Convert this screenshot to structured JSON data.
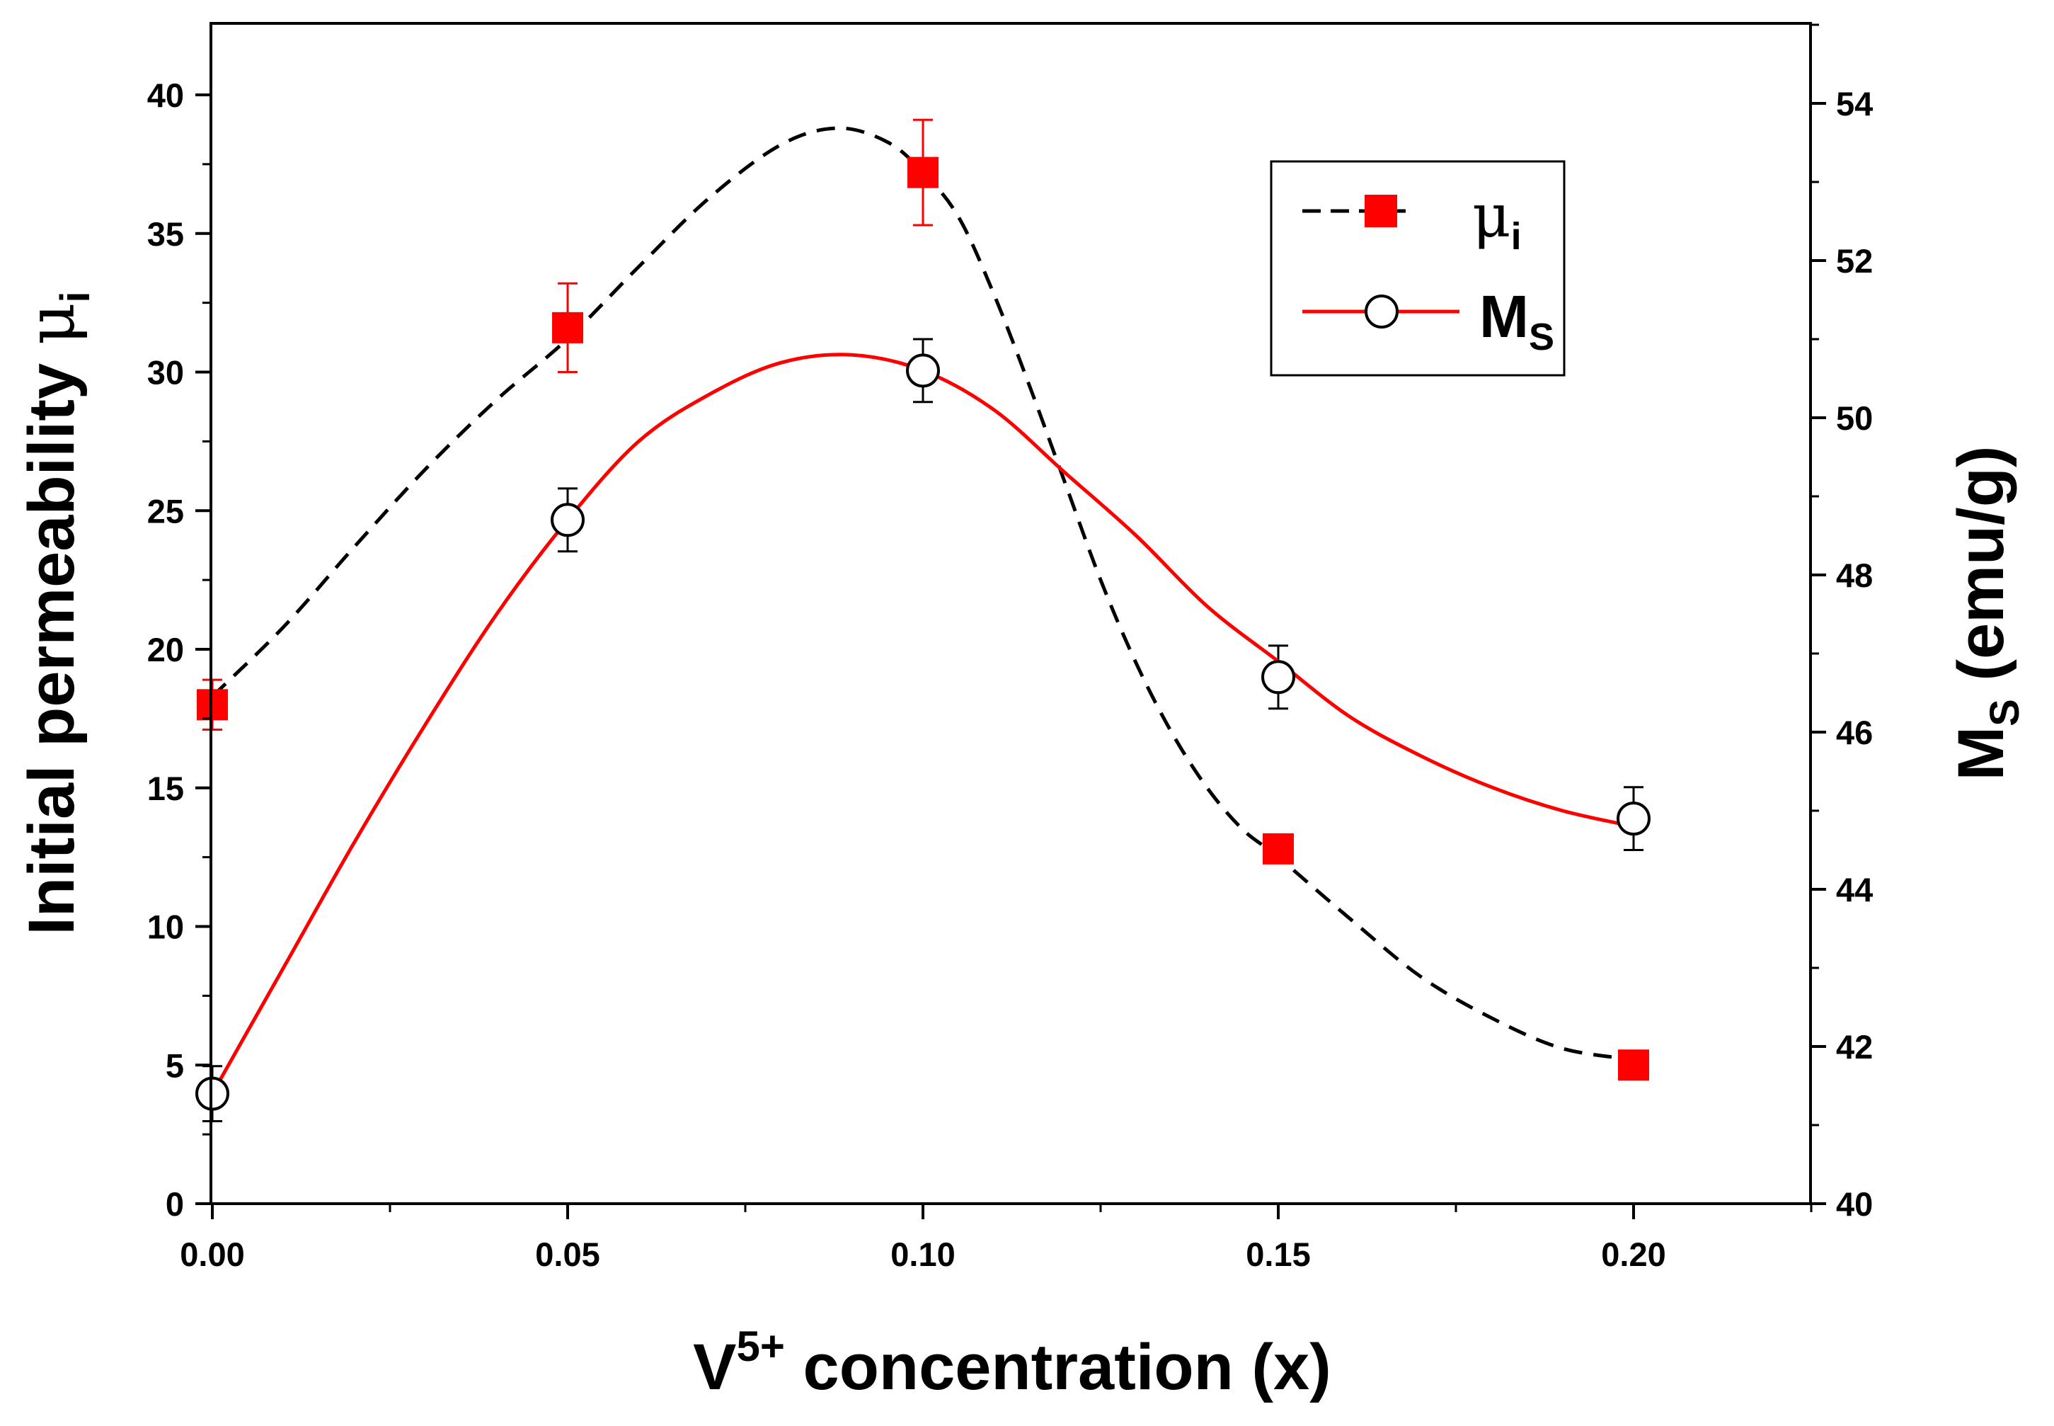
{
  "chart_data": {
    "type": "scatter",
    "title": "",
    "xlabel": {
      "main": "V",
      "sup": "5+",
      "rest": " concentration (x)"
    },
    "ylabel_left": {
      "main": "Initial permeability ",
      "greek": "μ",
      "sub": "i"
    },
    "ylabel_right": {
      "main": "M",
      "sub": "S",
      "rest": " (emu/g)"
    },
    "xlim": [
      0,
      0.225
    ],
    "ylim_left": [
      0,
      42.5
    ],
    "ylim_right": [
      40,
      55.3
    ],
    "x_ticks": [
      "0.00",
      "0.05",
      "0.10",
      "0.15",
      "0.20"
    ],
    "y_left_ticks": [
      "0",
      "5",
      "10",
      "15",
      "20",
      "25",
      "30",
      "35",
      "40"
    ],
    "y_right_ticks": [
      "40",
      "42",
      "44",
      "46",
      "48",
      "50",
      "52",
      "54"
    ],
    "grid": false,
    "legend_position": "top-right",
    "series": [
      {
        "name": "μ",
        "name_sub": "i",
        "axis": "left",
        "marker": "filled-square",
        "color": "#ff0000",
        "line_color": "#000000",
        "line_style": "dashed",
        "x": [
          0.0,
          0.05,
          0.1,
          0.15,
          0.2
        ],
        "y": [
          18.0,
          31.6,
          37.2,
          12.8,
          5.0
        ],
        "err": [
          0.9,
          1.6,
          1.9,
          0.4,
          0.3
        ],
        "fit": [
          [
            0.0,
            18.3
          ],
          [
            0.01,
            20.8
          ],
          [
            0.02,
            23.7
          ],
          [
            0.03,
            26.5
          ],
          [
            0.04,
            29.0
          ],
          [
            0.05,
            31.2
          ],
          [
            0.06,
            33.8
          ],
          [
            0.07,
            36.3
          ],
          [
            0.08,
            38.2
          ],
          [
            0.088,
            38.8
          ],
          [
            0.095,
            38.3
          ],
          [
            0.1,
            37.2
          ],
          [
            0.105,
            35.6
          ],
          [
            0.11,
            32.8
          ],
          [
            0.115,
            29.5
          ],
          [
            0.12,
            26.0
          ],
          [
            0.125,
            22.5
          ],
          [
            0.13,
            19.5
          ],
          [
            0.135,
            17.0
          ],
          [
            0.14,
            15.0
          ],
          [
            0.145,
            13.5
          ],
          [
            0.15,
            12.5
          ],
          [
            0.16,
            10.3
          ],
          [
            0.17,
            8.2
          ],
          [
            0.18,
            6.7
          ],
          [
            0.19,
            5.6
          ],
          [
            0.2,
            5.2
          ]
        ]
      },
      {
        "name": "M",
        "name_sub": "S",
        "axis": "right",
        "marker": "open-circle",
        "color": "#000000",
        "line_color": "#ff0000",
        "line_style": "solid",
        "x": [
          0.0,
          0.05,
          0.1,
          0.15,
          0.2
        ],
        "y": [
          41.4,
          48.7,
          50.6,
          46.7,
          44.9
        ],
        "err": [
          0.35,
          0.4,
          0.4,
          0.4,
          0.4
        ],
        "fit": [
          [
            0.0,
            41.4
          ],
          [
            0.01,
            43.0
          ],
          [
            0.02,
            44.6
          ],
          [
            0.03,
            46.1
          ],
          [
            0.04,
            47.5
          ],
          [
            0.05,
            48.7
          ],
          [
            0.06,
            49.7
          ],
          [
            0.07,
            50.3
          ],
          [
            0.08,
            50.7
          ],
          [
            0.09,
            50.8
          ],
          [
            0.1,
            50.6
          ],
          [
            0.11,
            50.1
          ],
          [
            0.12,
            49.3
          ],
          [
            0.13,
            48.5
          ],
          [
            0.14,
            47.6
          ],
          [
            0.15,
            46.9
          ],
          [
            0.16,
            46.2
          ],
          [
            0.17,
            45.7
          ],
          [
            0.18,
            45.3
          ],
          [
            0.19,
            45.0
          ],
          [
            0.2,
            44.8
          ]
        ]
      }
    ]
  }
}
